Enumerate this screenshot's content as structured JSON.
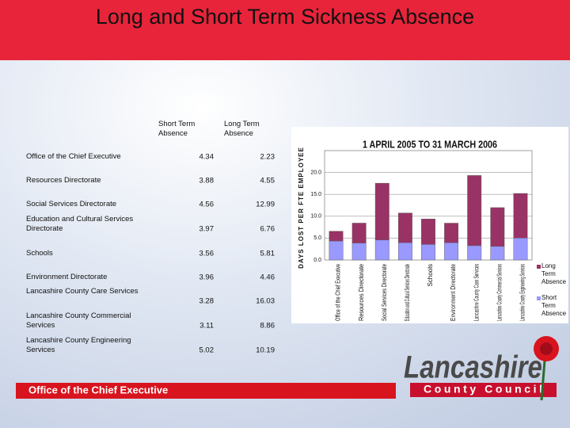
{
  "title": "Long and Short Term Sickness Absence",
  "chart_data": {
    "type": "stacked_bar",
    "title": "1 APRIL 2005 TO 31 MARCH 2006",
    "y_label": "DAYS LOST PER FTE EMPLOYEE",
    "categories": [
      "Office of the Chief Executive",
      "Resources Directorate",
      "Social Services Directorate",
      "Education and Cultural Services Directorate",
      "Schools",
      "Environment Directorate",
      "Lancashire County Care Services",
      "Lancashire County Commercial Services",
      "Lancashire County Engineering Services"
    ],
    "series": [
      {
        "name": "Short Term Absence",
        "color": "#9999ff",
        "values": [
          4.34,
          3.88,
          4.56,
          3.97,
          3.56,
          3.96,
          3.28,
          3.11,
          5.02
        ]
      },
      {
        "name": "Long Term Absence",
        "color": "#993366",
        "values": [
          2.23,
          4.55,
          12.99,
          6.76,
          5.81,
          4.46,
          16.03,
          8.86,
          10.19
        ]
      }
    ],
    "ylim": [
      0,
      25
    ],
    "yticks": [
      {
        "value": 0,
        "label": "0.0"
      },
      {
        "value": 5,
        "label": "5.0"
      },
      {
        "value": 10,
        "label": "10.0"
      },
      {
        "value": 15,
        "label": "15.0"
      },
      {
        "value": 20,
        "label": "20.0"
      }
    ],
    "grid": true
  },
  "footer": "Office of the Chief Executive",
  "logo": {
    "name": "Lancashire",
    "subtitle": "County Council"
  }
}
